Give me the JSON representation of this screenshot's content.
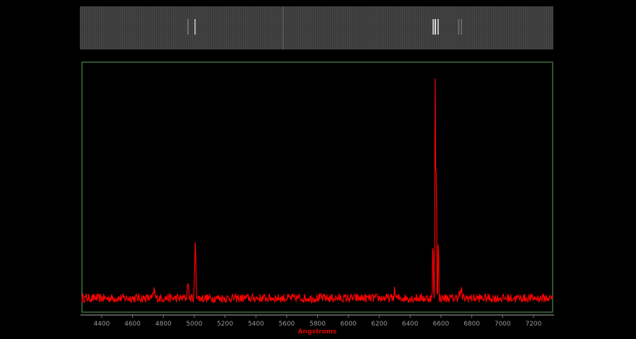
{
  "chart_data": {
    "type": "line",
    "title": "",
    "xlabel": "Angstroms",
    "ylabel": "",
    "xlim": [
      4272,
      7324
    ],
    "ylim": [
      0,
      1
    ],
    "xticks": [
      4400,
      4600,
      4800,
      5000,
      5200,
      5400,
      5600,
      5800,
      6000,
      6200,
      6400,
      6600,
      6800,
      7000,
      7200
    ],
    "grid": false,
    "continuum": 0.056,
    "emission_lines": [
      {
        "x": 4740,
        "y": 0.09
      },
      {
        "x": 4959,
        "y": 0.124
      },
      {
        "x": 5007,
        "y": 0.268
      },
      {
        "x": 6300,
        "y": 0.085
      },
      {
        "x": 6548,
        "y": 0.308
      },
      {
        "x": 6563,
        "y": 0.977
      },
      {
        "x": 6583,
        "y": 0.308
      },
      {
        "x": 6570,
        "y": 0.6
      },
      {
        "x": 6716,
        "y": 0.08
      },
      {
        "x": 6731,
        "y": 0.09
      }
    ],
    "colors": {
      "line": "#ff0000",
      "frame": "#5fa85f",
      "axis_label": "#e00000",
      "background": "#000000"
    }
  },
  "spectrum_image": {
    "description_colors": {
      "background": "#3c3c3c",
      "lines": "#dddddd"
    }
  }
}
